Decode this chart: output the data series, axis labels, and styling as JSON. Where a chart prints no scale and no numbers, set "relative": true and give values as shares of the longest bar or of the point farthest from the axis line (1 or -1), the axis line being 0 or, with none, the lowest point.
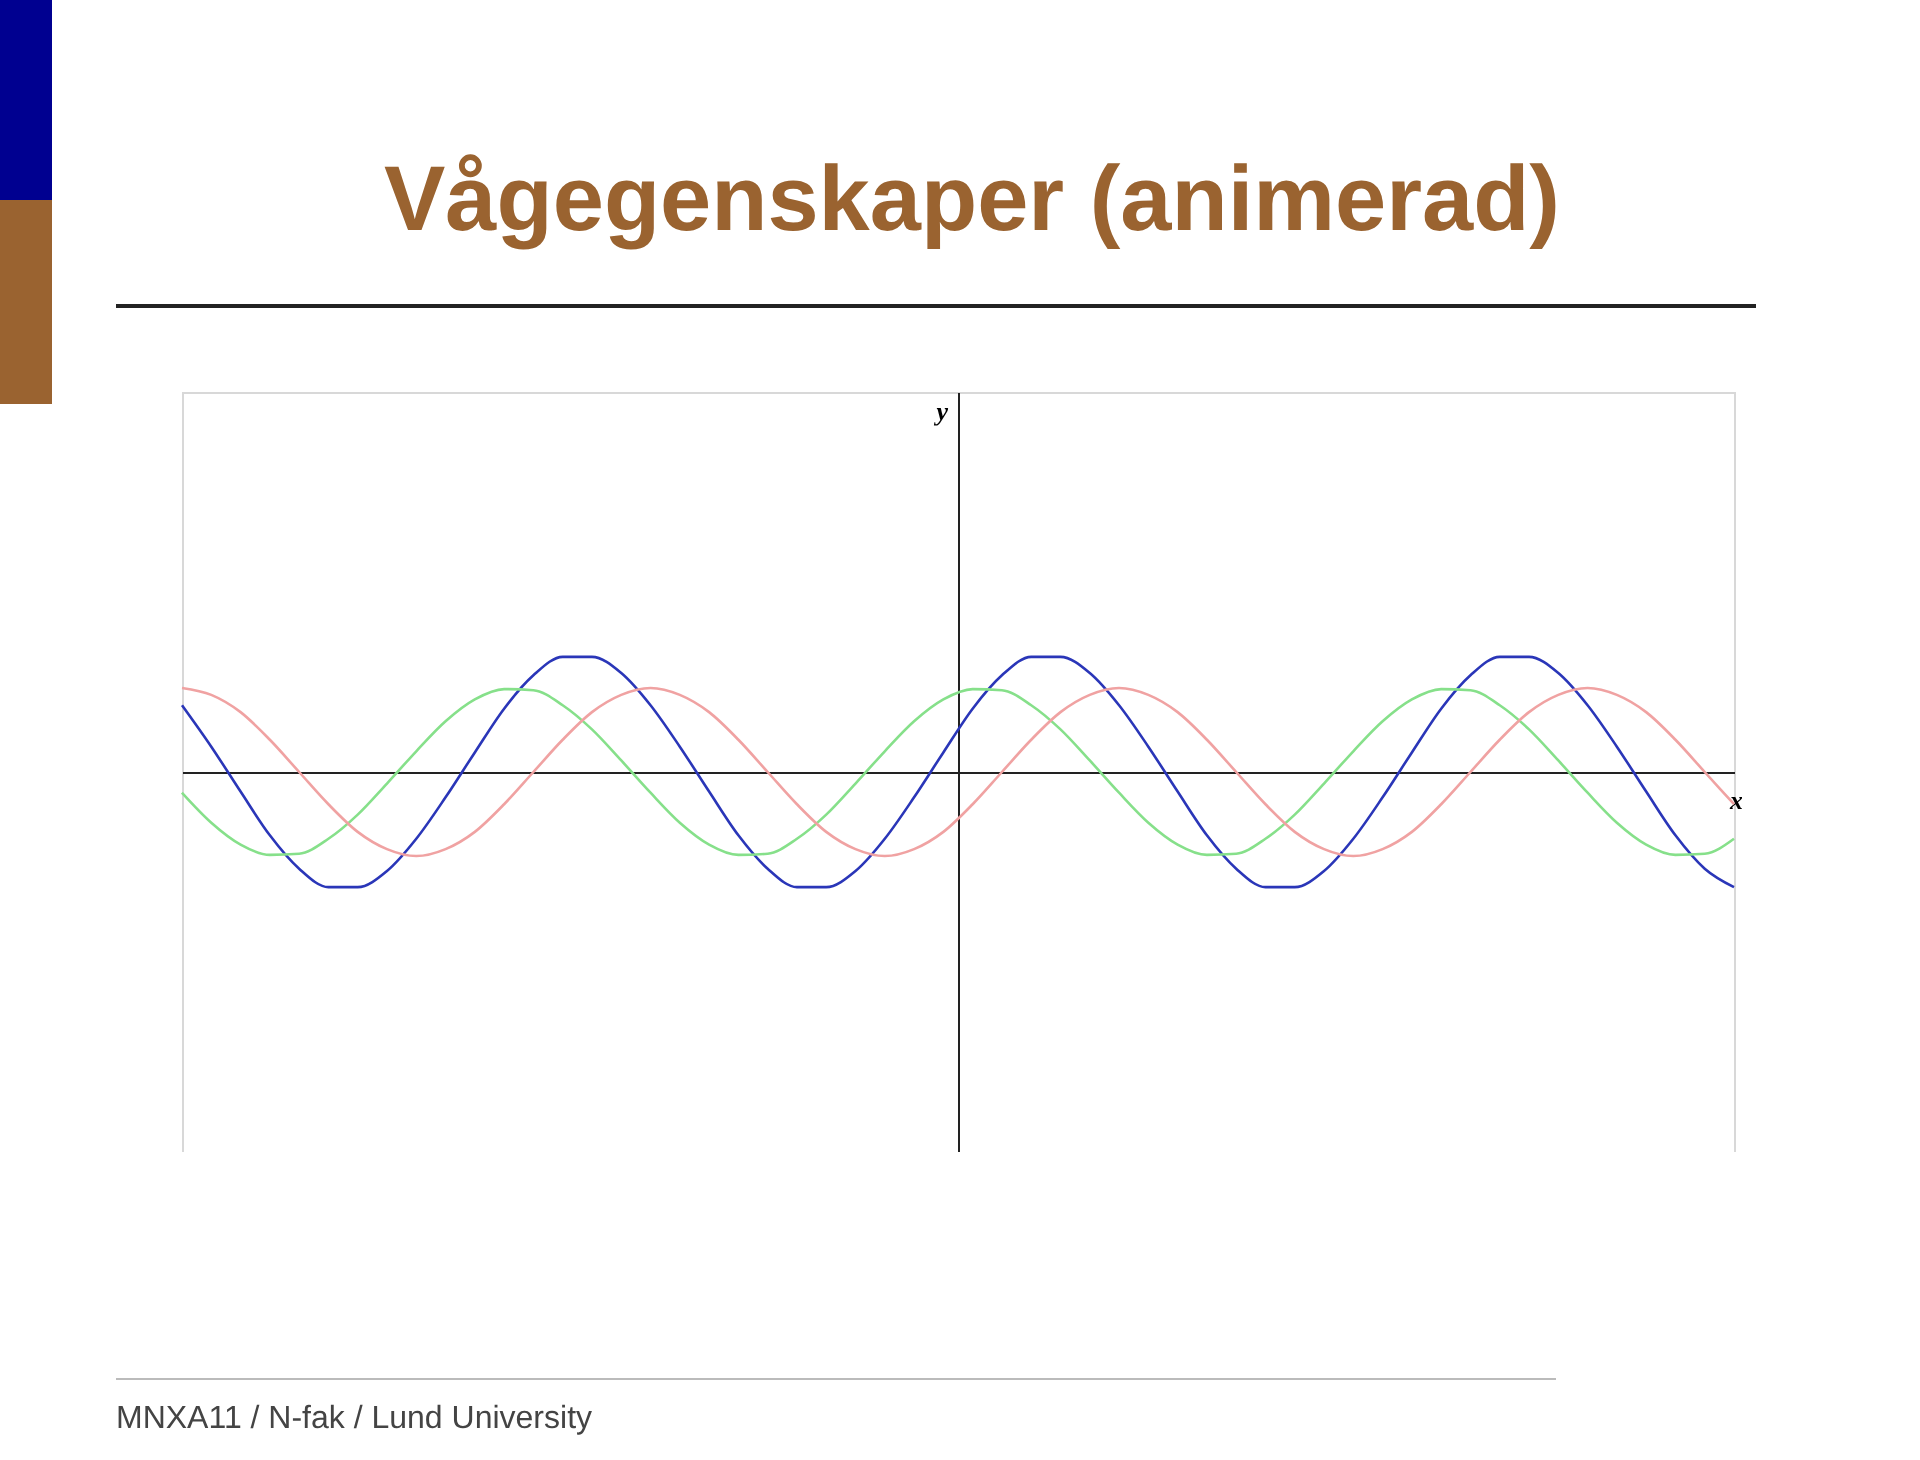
{
  "chart_data": {
    "type": "line",
    "title": "Vågegenskaper (animerad)",
    "xlabel": "x",
    "relative": true,
    "legend": false,
    "grid": false,
    "marker": "none",
    "line_style": "solid",
    "annotations": [
      "y",
      "MNXA11 / N-fak / Lund University"
    ],
    "categories": [
      null,
      null,
      null,
      null,
      null,
      null,
      null,
      null,
      null,
      null,
      null,
      null,
      null,
      null,
      null,
      null,
      null,
      null,
      null,
      null,
      null,
      null,
      null,
      null,
      null,
      null,
      null,
      null,
      null,
      null,
      null,
      null,
      null,
      null,
      null,
      null,
      null,
      null,
      null,
      null,
      null,
      null,
      null,
      null,
      null,
      null,
      null,
      null,
      null,
      null,
      null,
      null,
      null,
      null
    ],
    "series": [
      {
        "color": "#2a36b8",
        "values": [
          0.58,
          0.22,
          -0.17,
          -0.55,
          -0.84,
          -1,
          -1,
          -0.86,
          -0.58,
          -0.22,
          0.17,
          0.55,
          0.84,
          1,
          1,
          0.86,
          0.58,
          0.22,
          -0.17,
          -0.55,
          -0.84,
          -1,
          -1,
          -0.86,
          -0.58,
          -0.22,
          0.17,
          0.55,
          0.84,
          1,
          1,
          0.86,
          0.58,
          0.22,
          -0.17,
          -0.55,
          -0.84,
          -1,
          -1,
          -0.86,
          -0.58,
          -0.22,
          0.17,
          0.55,
          0.84,
          1,
          1,
          0.86,
          0.58,
          0.22,
          -0.17,
          -0.55,
          -0.84,
          -1
        ]
      },
      {
        "color": "#86e08a",
        "values": [
          -0.18,
          -0.44,
          -0.63,
          -0.72,
          -0.71,
          -0.58,
          -0.37,
          -0.1,
          0.18,
          0.44,
          0.63,
          0.72,
          0.71,
          0.58,
          0.37,
          0.1,
          -0.18,
          -0.44,
          -0.63,
          -0.72,
          -0.71,
          -0.58,
          -0.37,
          -0.1,
          0.18,
          0.44,
          0.63,
          0.72,
          0.71,
          0.58,
          0.37,
          0.1,
          -0.18,
          -0.44,
          -0.63,
          -0.72,
          -0.71,
          -0.58,
          -0.37,
          -0.1,
          0.18,
          0.44,
          0.63,
          0.72,
          0.71,
          0.58,
          0.37,
          0.1,
          -0.18,
          -0.44,
          -0.63,
          -0.72,
          -0.71,
          -0.58
        ]
      },
      {
        "color": "#f0a2a2",
        "values": [
          0.73,
          0.67,
          0.52,
          0.28,
          0,
          -0.28,
          -0.52,
          -0.67,
          -0.73,
          -0.67,
          -0.52,
          -0.28,
          0,
          0.28,
          0.52,
          0.67,
          0.73,
          0.67,
          0.52,
          0.28,
          0,
          -0.28,
          -0.52,
          -0.67,
          -0.73,
          -0.67,
          -0.52,
          -0.28,
          0,
          0.28,
          0.52,
          0.67,
          0.73,
          0.67,
          0.52,
          0.28,
          0,
          -0.28,
          -0.52,
          -0.67,
          -0.73,
          -0.67,
          -0.52,
          -0.28,
          0,
          0.28,
          0.52,
          0.67,
          0.73,
          0.67,
          0.52,
          0.28,
          0,
          -0.28
        ]
      }
    ]
  }
}
